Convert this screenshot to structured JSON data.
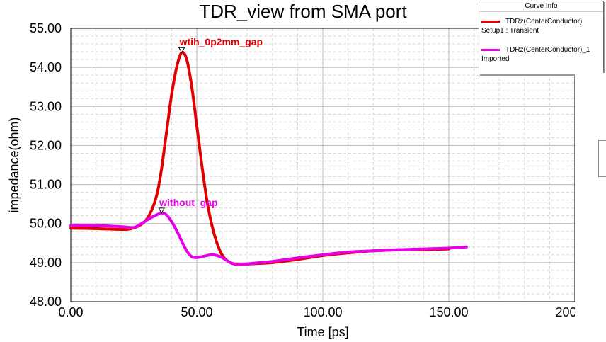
{
  "chart_data": {
    "type": "line",
    "title": "TDR_view from SMA port",
    "xlabel": "Time [ps]",
    "ylabel": "impedance(ohm)",
    "xlim": [
      0,
      200
    ],
    "ylim": [
      48,
      55
    ],
    "xticks": [
      "0.00",
      "50.00",
      "100.00",
      "150.00",
      "200.00"
    ],
    "yticks": [
      "48.00",
      "49.00",
      "50.00",
      "51.00",
      "52.00",
      "53.00",
      "54.00",
      "55.00"
    ],
    "grid": true,
    "legend_title": "Curve Info",
    "series": [
      {
        "name": "TDRz(CenterConductor)",
        "source": "Setup1 : Transient",
        "color": "#e00000",
        "x": [
          0,
          10,
          20,
          24,
          28,
          31,
          34,
          36,
          38,
          40,
          42,
          44,
          46,
          48,
          50,
          52,
          54,
          56,
          58,
          60,
          62,
          64,
          66,
          68,
          72,
          80,
          90,
          100,
          110,
          120,
          130,
          140,
          150
        ],
        "y": [
          49.88,
          49.87,
          49.85,
          49.87,
          49.98,
          50.2,
          50.7,
          51.4,
          52.35,
          53.3,
          54.0,
          54.38,
          54.2,
          53.5,
          52.5,
          51.5,
          50.6,
          49.95,
          49.5,
          49.2,
          49.05,
          48.98,
          48.96,
          48.95,
          48.97,
          49.0,
          49.08,
          49.18,
          49.25,
          49.3,
          49.33,
          49.33,
          49.35
        ]
      },
      {
        "name": "TDRz(CenterConductor)_1",
        "source": "Imported",
        "color": "#e800e8",
        "x": [
          0,
          10,
          20,
          25,
          28,
          31,
          34,
          36,
          38,
          40,
          42,
          44,
          46,
          48,
          50,
          52,
          54,
          56,
          58,
          60,
          62,
          64,
          66,
          68,
          72,
          80,
          90,
          100,
          110,
          120,
          130,
          140,
          150,
          157
        ],
        "y": [
          49.95,
          49.95,
          49.92,
          49.9,
          50.0,
          50.12,
          50.22,
          50.27,
          50.22,
          50.05,
          49.82,
          49.55,
          49.3,
          49.15,
          49.13,
          49.15,
          49.18,
          49.2,
          49.18,
          49.13,
          49.05,
          48.98,
          48.95,
          48.95,
          48.98,
          49.03,
          49.12,
          49.2,
          49.27,
          49.3,
          49.33,
          49.35,
          49.37,
          49.4
        ]
      }
    ],
    "markers": [
      {
        "label": "wtih_0p2mm_gap",
        "x": 44,
        "y": 54.38,
        "color": "#e00000"
      },
      {
        "label": "without_gap",
        "x": 36,
        "y": 50.27,
        "color": "#e800e8"
      }
    ]
  }
}
